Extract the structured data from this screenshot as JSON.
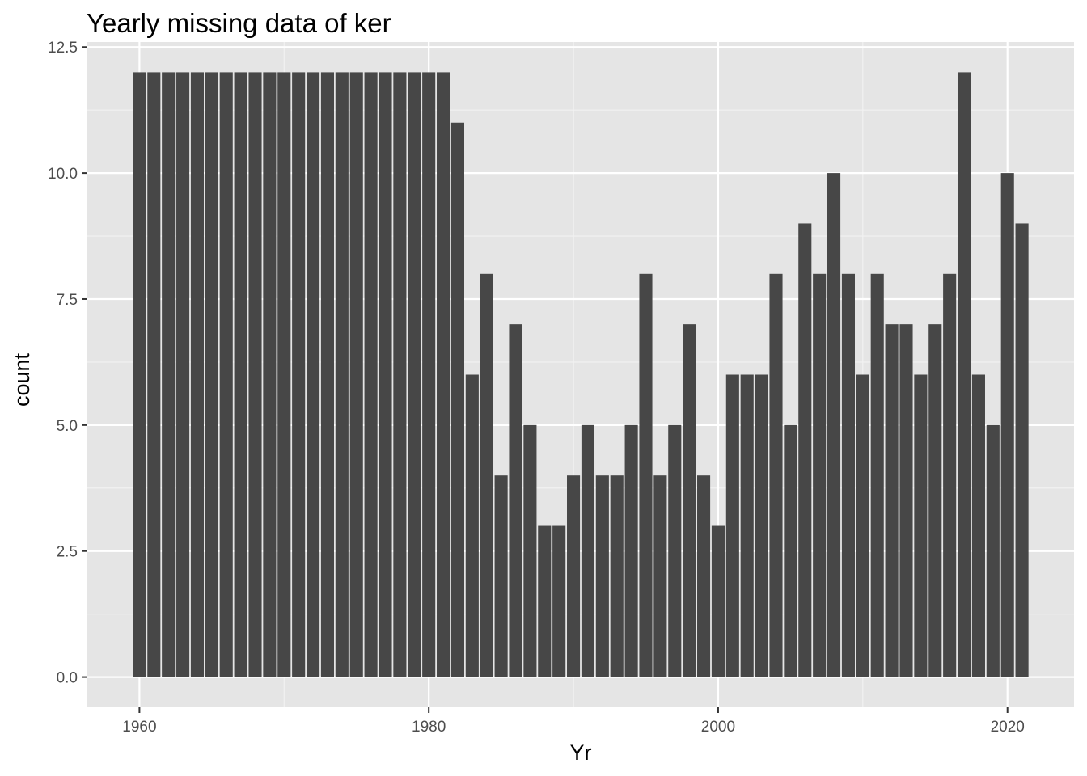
{
  "chart_data": {
    "type": "bar",
    "title": "Yearly missing data of ker",
    "xlabel": "Yr",
    "ylabel": "count",
    "xlim": [
      1956.4,
      2024.6
    ],
    "ylim": [
      -0.6,
      12.6
    ],
    "x_ticks": [
      1960,
      1980,
      2000,
      2020
    ],
    "x_tick_labels": [
      "1960",
      "1980",
      "2000",
      "2020"
    ],
    "y_ticks": [
      0,
      2.5,
      5,
      7.5,
      10,
      12.5
    ],
    "y_tick_labels": [
      "0.0",
      "2.5",
      "5.0",
      "7.5",
      "10.0",
      "12.5"
    ],
    "grid": true,
    "legend": "none",
    "bar_color": "#474747",
    "panel_color": "#e5e5e5",
    "x": [
      1960,
      1961,
      1962,
      1963,
      1964,
      1965,
      1966,
      1967,
      1968,
      1969,
      1970,
      1971,
      1972,
      1973,
      1974,
      1975,
      1976,
      1977,
      1978,
      1979,
      1980,
      1981,
      1982,
      1983,
      1984,
      1985,
      1986,
      1987,
      1988,
      1989,
      1990,
      1991,
      1992,
      1993,
      1994,
      1995,
      1996,
      1997,
      1998,
      1999,
      2000,
      2001,
      2002,
      2003,
      2004,
      2005,
      2006,
      2007,
      2008,
      2009,
      2010,
      2011,
      2012,
      2013,
      2014,
      2015,
      2016,
      2017,
      2018,
      2019,
      2020,
      2021
    ],
    "values": [
      12,
      12,
      12,
      12,
      12,
      12,
      12,
      12,
      12,
      12,
      12,
      12,
      12,
      12,
      12,
      12,
      12,
      12,
      12,
      12,
      12,
      12,
      11,
      6,
      8,
      4,
      7,
      5,
      3,
      3,
      4,
      5,
      4,
      4,
      5,
      8,
      4,
      5,
      7,
      4,
      3,
      6,
      6,
      6,
      8,
      5,
      9,
      8,
      10,
      8,
      6,
      8,
      7,
      7,
      6,
      7,
      8,
      12,
      6,
      5,
      10,
      9
    ]
  }
}
